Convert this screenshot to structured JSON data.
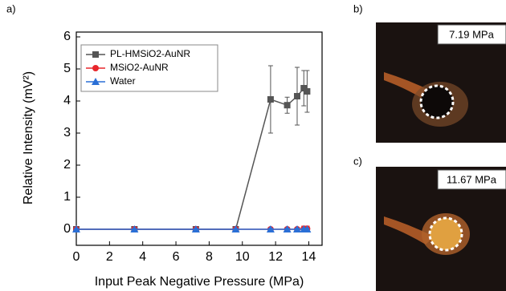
{
  "figure_label": "a)",
  "chart_data": {
    "type": "line",
    "x_label": "Input Peak Negative Pressure (MPa)",
    "y_label": "Relative Intensity (mV²)",
    "xlim": [
      0,
      14.8
    ],
    "xticks": [
      0,
      2,
      4,
      6,
      8,
      10,
      12,
      14
    ],
    "ylim": [
      -0.5,
      6.15
    ],
    "yticks": [
      0,
      1,
      2,
      3,
      4,
      5,
      6
    ],
    "legend": "upper left",
    "series": [
      {
        "name": "PL-HMSiO2-AuNR",
        "color": "#555555",
        "marker": "square",
        "x": [
          0,
          3.5,
          7.2,
          9.6,
          11.7,
          12.7,
          13.3,
          13.7,
          13.9
        ],
        "values": [
          0,
          0,
          0,
          0,
          4.05,
          3.87,
          4.15,
          4.4,
          4.3
        ],
        "errors": [
          0.03,
          0.03,
          0.03,
          0.03,
          1.05,
          0.25,
          0.9,
          0.55,
          0.65
        ]
      },
      {
        "name": "MSiO2-AuNR",
        "color": "#e8262b",
        "marker": "circle",
        "x": [
          0,
          3.5,
          7.2,
          9.6,
          11.7,
          12.7,
          13.3,
          13.7,
          13.9
        ],
        "values": [
          0,
          0,
          0,
          0,
          0,
          0,
          0,
          0.02,
          0.02
        ],
        "errors": [
          0.02,
          0.02,
          0.02,
          0.02,
          0.05,
          0.05,
          0.05,
          0.08,
          0.08
        ]
      },
      {
        "name": "Water",
        "color": "#2a6fd6",
        "marker": "triangle",
        "x": [
          0,
          3.5,
          7.2,
          9.6,
          11.7,
          12.7,
          13.3,
          13.7,
          13.9
        ],
        "values": [
          0,
          0,
          0,
          0,
          0,
          0,
          0,
          0,
          0
        ],
        "errors": [
          0.02,
          0.02,
          0.02,
          0.02,
          0.03,
          0.03,
          0.03,
          0.03,
          0.03
        ]
      }
    ]
  },
  "panels": [
    {
      "label": "b)",
      "pressure": "7.19 MPa"
    },
    {
      "label": "c)",
      "pressure": "11.67 MPa"
    }
  ]
}
